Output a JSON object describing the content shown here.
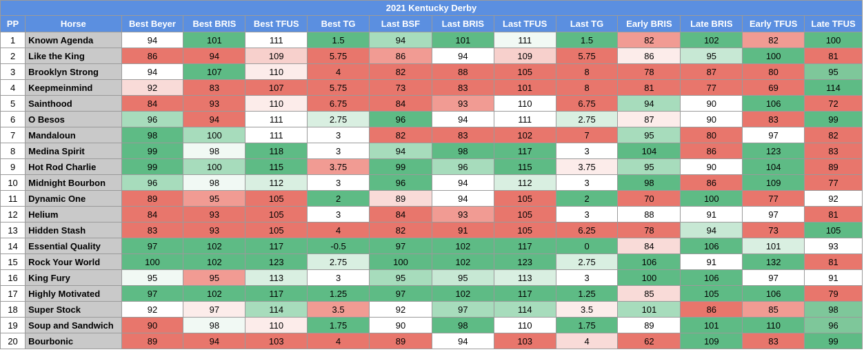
{
  "sheet": {
    "title": "2021 Kentucky Derby",
    "headers": [
      "PP",
      "Horse",
      "Best Beyer",
      "Best BRIS",
      "Best TFUS",
      "Best TG",
      "Last BSF",
      "Last BRIS",
      "Last TFUS",
      "Last TG",
      "Early BRIS",
      "Late BRIS",
      "Early TFUS",
      "Late TFUS"
    ],
    "rows": [
      [
        "1",
        "Known Agenda",
        "94",
        "101",
        "111",
        "1.5",
        "94",
        "101",
        "111",
        "1.5",
        "82",
        "102",
        "82",
        "100"
      ],
      [
        "2",
        "Like the King",
        "86",
        "94",
        "109",
        "5.75",
        "86",
        "94",
        "109",
        "5.75",
        "86",
        "95",
        "100",
        "81"
      ],
      [
        "3",
        "Brooklyn Strong",
        "94",
        "107",
        "110",
        "4",
        "82",
        "88",
        "105",
        "8",
        "78",
        "87",
        "80",
        "95"
      ],
      [
        "4",
        "Keepmeinmind",
        "92",
        "83",
        "107",
        "5.75",
        "73",
        "83",
        "101",
        "8",
        "81",
        "77",
        "69",
        "114"
      ],
      [
        "5",
        "Sainthood",
        "84",
        "93",
        "110",
        "6.75",
        "84",
        "93",
        "110",
        "6.75",
        "94",
        "90",
        "106",
        "72"
      ],
      [
        "6",
        "O Besos",
        "96",
        "94",
        "111",
        "2.75",
        "96",
        "94",
        "111",
        "2.75",
        "87",
        "90",
        "83",
        "99"
      ],
      [
        "7",
        "Mandaloun",
        "98",
        "100",
        "111",
        "3",
        "82",
        "83",
        "102",
        "7",
        "95",
        "80",
        "97",
        "82"
      ],
      [
        "8",
        "Medina Spirit",
        "99",
        "98",
        "118",
        "3",
        "94",
        "98",
        "117",
        "3",
        "104",
        "86",
        "123",
        "83"
      ],
      [
        "9",
        "Hot Rod Charlie",
        "99",
        "100",
        "115",
        "3.75",
        "99",
        "96",
        "115",
        "3.75",
        "95",
        "90",
        "104",
        "89"
      ],
      [
        "10",
        "Midnight Bourbon",
        "96",
        "98",
        "112",
        "3",
        "96",
        "94",
        "112",
        "3",
        "98",
        "86",
        "109",
        "77"
      ],
      [
        "11",
        "Dynamic One",
        "89",
        "95",
        "105",
        "2",
        "89",
        "94",
        "105",
        "2",
        "70",
        "100",
        "77",
        "92"
      ],
      [
        "12",
        "Helium",
        "84",
        "93",
        "105",
        "3",
        "84",
        "93",
        "105",
        "3",
        "88",
        "91",
        "97",
        "81"
      ],
      [
        "13",
        "Hidden Stash",
        "83",
        "93",
        "105",
        "4",
        "82",
        "91",
        "105",
        "6.25",
        "78",
        "94",
        "73",
        "105"
      ],
      [
        "14",
        "Essential Quality",
        "97",
        "102",
        "117",
        "-0.5",
        "97",
        "102",
        "117",
        "0",
        "84",
        "106",
        "101",
        "93"
      ],
      [
        "15",
        "Rock Your World",
        "100",
        "102",
        "123",
        "2.75",
        "100",
        "102",
        "123",
        "2.75",
        "106",
        "91",
        "132",
        "81"
      ],
      [
        "16",
        "King Fury",
        "95",
        "95",
        "113",
        "3",
        "95",
        "95",
        "113",
        "3",
        "100",
        "106",
        "97",
        "91"
      ],
      [
        "17",
        "Highly Motivated",
        "97",
        "102",
        "117",
        "1.25",
        "97",
        "102",
        "117",
        "1.25",
        "85",
        "105",
        "106",
        "79"
      ],
      [
        "18",
        "Super Stock",
        "92",
        "97",
        "114",
        "3.5",
        "92",
        "97",
        "114",
        "3.5",
        "101",
        "86",
        "85",
        "98"
      ],
      [
        "19",
        "Soup and Sandwich",
        "90",
        "98",
        "110",
        "1.75",
        "90",
        "98",
        "110",
        "1.75",
        "89",
        "101",
        "110",
        "96"
      ],
      [
        "20",
        "Bourbonic",
        "89",
        "94",
        "103",
        "4",
        "89",
        "94",
        "103",
        "4",
        "62",
        "109",
        "83",
        "99"
      ]
    ],
    "fills": [
      [
        "#ffffff",
        "#5ebb85",
        "#ffffff",
        "#5ebb85",
        "#a7dcbc",
        "#5ebb85",
        "#f1f9f4",
        "#5ebb85",
        "#f19b93",
        "#5ebb85",
        "#f19b93",
        "#5ebb85"
      ],
      [
        "#e8766c",
        "#e8766c",
        "#f7d0cc",
        "#e8766c",
        "#f19b93",
        "#ffffff",
        "#f7d0cc",
        "#e8766c",
        "#fcecea",
        "#c7e8d4",
        "#5ebb85",
        "#e8766c"
      ],
      [
        "#ffffff",
        "#5ebb85",
        "#fcecea",
        "#e8766c",
        "#e8766c",
        "#e8766c",
        "#e8766c",
        "#e8766c",
        "#e8766c",
        "#e8766c",
        "#e8766c",
        "#7ec79a"
      ],
      [
        "#f9dbd8",
        "#e8766c",
        "#e8766c",
        "#e8766c",
        "#e8766c",
        "#e8766c",
        "#e8766c",
        "#e8766c",
        "#e8766c",
        "#e8766c",
        "#e8766c",
        "#5ebb85"
      ],
      [
        "#e8766c",
        "#e8766c",
        "#fcecea",
        "#e8766c",
        "#e8766c",
        "#f19b93",
        "#ffffff",
        "#e8766c",
        "#a7dcbc",
        "#ffffff",
        "#5ebb85",
        "#e8766c"
      ],
      [
        "#a7dcbc",
        "#e8766c",
        "#ffffff",
        "#d9efe1",
        "#5ebb85",
        "#ffffff",
        "#ffffff",
        "#d9efe1",
        "#fcecea",
        "#ffffff",
        "#e8766c",
        "#5ebb85"
      ],
      [
        "#5ebb85",
        "#a7dcbc",
        "#ffffff",
        "#ffffff",
        "#e8766c",
        "#e8766c",
        "#e8766c",
        "#e8766c",
        "#a7dcbc",
        "#e8766c",
        "#ffffff",
        "#e8766c"
      ],
      [
        "#5ebb85",
        "#f1f9f4",
        "#5ebb85",
        "#ffffff",
        "#a7dcbc",
        "#5ebb85",
        "#5ebb85",
        "#ffffff",
        "#5ebb85",
        "#e8766c",
        "#5ebb85",
        "#e8766c"
      ],
      [
        "#5ebb85",
        "#a7dcbc",
        "#5ebb85",
        "#f19b93",
        "#5ebb85",
        "#a7dcbc",
        "#5ebb85",
        "#fcecea",
        "#a7dcbc",
        "#ffffff",
        "#5ebb85",
        "#e8766c"
      ],
      [
        "#a7dcbc",
        "#f1f9f4",
        "#d9efe1",
        "#ffffff",
        "#5ebb85",
        "#ffffff",
        "#d9efe1",
        "#ffffff",
        "#5ebb85",
        "#e8766c",
        "#5ebb85",
        "#e8766c"
      ],
      [
        "#e8766c",
        "#f19b93",
        "#e8766c",
        "#5ebb85",
        "#f9dbd8",
        "#ffffff",
        "#e8766c",
        "#5ebb85",
        "#e8766c",
        "#5ebb85",
        "#e8766c",
        "#ffffff"
      ],
      [
        "#e8766c",
        "#e8766c",
        "#e8766c",
        "#ffffff",
        "#e8766c",
        "#f19b93",
        "#e8766c",
        "#ffffff",
        "#ffffff",
        "#ffffff",
        "#ffffff",
        "#e8766c"
      ],
      [
        "#e8766c",
        "#e8766c",
        "#e8766c",
        "#e8766c",
        "#e8766c",
        "#e8766c",
        "#e8766c",
        "#e8766c",
        "#e8766c",
        "#c7e8d4",
        "#e8766c",
        "#5ebb85"
      ],
      [
        "#5ebb85",
        "#5ebb85",
        "#5ebb85",
        "#5ebb85",
        "#5ebb85",
        "#5ebb85",
        "#5ebb85",
        "#5ebb85",
        "#f9dbd8",
        "#5ebb85",
        "#d9efe1",
        "#ffffff"
      ],
      [
        "#5ebb85",
        "#5ebb85",
        "#5ebb85",
        "#d9efe1",
        "#5ebb85",
        "#5ebb85",
        "#5ebb85",
        "#d9efe1",
        "#5ebb85",
        "#ffffff",
        "#5ebb85",
        "#e8766c"
      ],
      [
        "#f1f9f4",
        "#f19b93",
        "#d9efe1",
        "#ffffff",
        "#a7dcbc",
        "#c7e8d4",
        "#d9efe1",
        "#ffffff",
        "#5ebb85",
        "#5ebb85",
        "#ffffff",
        "#ffffff"
      ],
      [
        "#5ebb85",
        "#5ebb85",
        "#5ebb85",
        "#5ebb85",
        "#5ebb85",
        "#5ebb85",
        "#5ebb85",
        "#5ebb85",
        "#f9dbd8",
        "#5ebb85",
        "#5ebb85",
        "#e8766c"
      ],
      [
        "#ffffff",
        "#fcecea",
        "#a7dcbc",
        "#f19b93",
        "#ffffff",
        "#a7dcbc",
        "#a7dcbc",
        "#fcecea",
        "#a7dcbc",
        "#e8766c",
        "#f19b93",
        "#7ec79a"
      ],
      [
        "#e8766c",
        "#f1f9f4",
        "#fcecea",
        "#5ebb85",
        "#ffffff",
        "#5ebb85",
        "#ffffff",
        "#5ebb85",
        "#ffffff",
        "#5ebb85",
        "#5ebb85",
        "#7ec79a"
      ],
      [
        "#e8766c",
        "#e8766c",
        "#e8766c",
        "#e8766c",
        "#e8766c",
        "#ffffff",
        "#e8766c",
        "#f9dbd8",
        "#e8766c",
        "#5ebb85",
        "#e8766c",
        "#5ebb85"
      ]
    ]
  }
}
